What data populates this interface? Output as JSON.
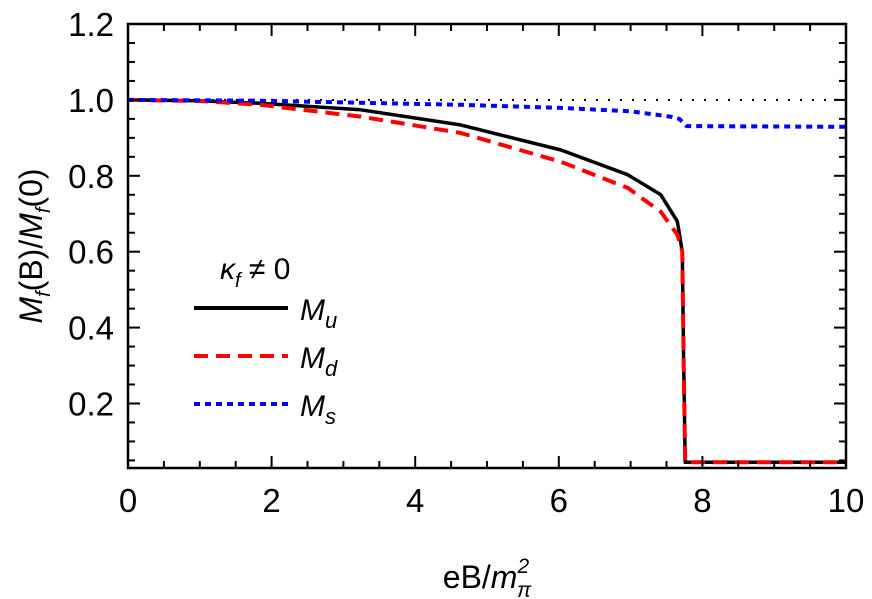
{
  "chart_data": {
    "type": "line",
    "title": "",
    "xlabel": "eB/m_π^2",
    "xlabel_parts": {
      "main": "eB/",
      "var": "m",
      "sub": "π",
      "sup": "2"
    },
    "ylabel": "M_f(B)/M_f(0)",
    "ylabel_parts": {
      "var1": "M",
      "sub1": "f",
      "mid": "(B)/",
      "var2": "M",
      "sub2": "f",
      "end": "(0)"
    },
    "xlim": [
      0,
      10
    ],
    "ylim": [
      0.03,
      1.2
    ],
    "x_ticks": [
      "0",
      "2",
      "4",
      "6",
      "8",
      "10"
    ],
    "y_ticks": [
      "0.2",
      "0.4",
      "0.6",
      "0.8",
      "1.0",
      "1.2"
    ],
    "grid": false,
    "reference_line": {
      "y": 1.0,
      "style": "dotted",
      "color": "#000000"
    },
    "legend": {
      "placement": "center-left",
      "header": {
        "var": "κ",
        "sub": "f",
        "rest": " ≠ 0"
      }
    },
    "series": [
      {
        "name": "M_u",
        "label_var": "M",
        "label_sub": "u",
        "color": "#000000",
        "style": "solid",
        "x": [
          0,
          1,
          1.84,
          3.24,
          4.63,
          6.03,
          6.96,
          7.42,
          7.65,
          7.72,
          7.74,
          7.76,
          10
        ],
        "y": [
          1.0,
          0.998,
          0.991,
          0.974,
          0.934,
          0.868,
          0.803,
          0.75,
          0.68,
          0.6,
          0.3,
          0.045,
          0.045
        ]
      },
      {
        "name": "M_d",
        "label_var": "M",
        "label_sub": "d",
        "color": "#ff0000",
        "style": "dashed",
        "x": [
          0,
          1,
          1.84,
          3.24,
          4.63,
          6.03,
          6.96,
          7.42,
          7.65,
          7.72,
          7.74,
          7.76,
          10
        ],
        "y": [
          1.0,
          0.997,
          0.987,
          0.956,
          0.913,
          0.837,
          0.768,
          0.705,
          0.645,
          0.6,
          0.3,
          0.045,
          0.045
        ]
      },
      {
        "name": "M_s",
        "label_var": "M",
        "label_sub": "s",
        "color": "#0000ff",
        "style": "dotted",
        "x": [
          0,
          1.84,
          4.63,
          6.03,
          7.0,
          7.55,
          7.68,
          7.78,
          10
        ],
        "y": [
          1.0,
          0.998,
          0.987,
          0.979,
          0.97,
          0.956,
          0.95,
          0.931,
          0.929
        ]
      }
    ]
  }
}
